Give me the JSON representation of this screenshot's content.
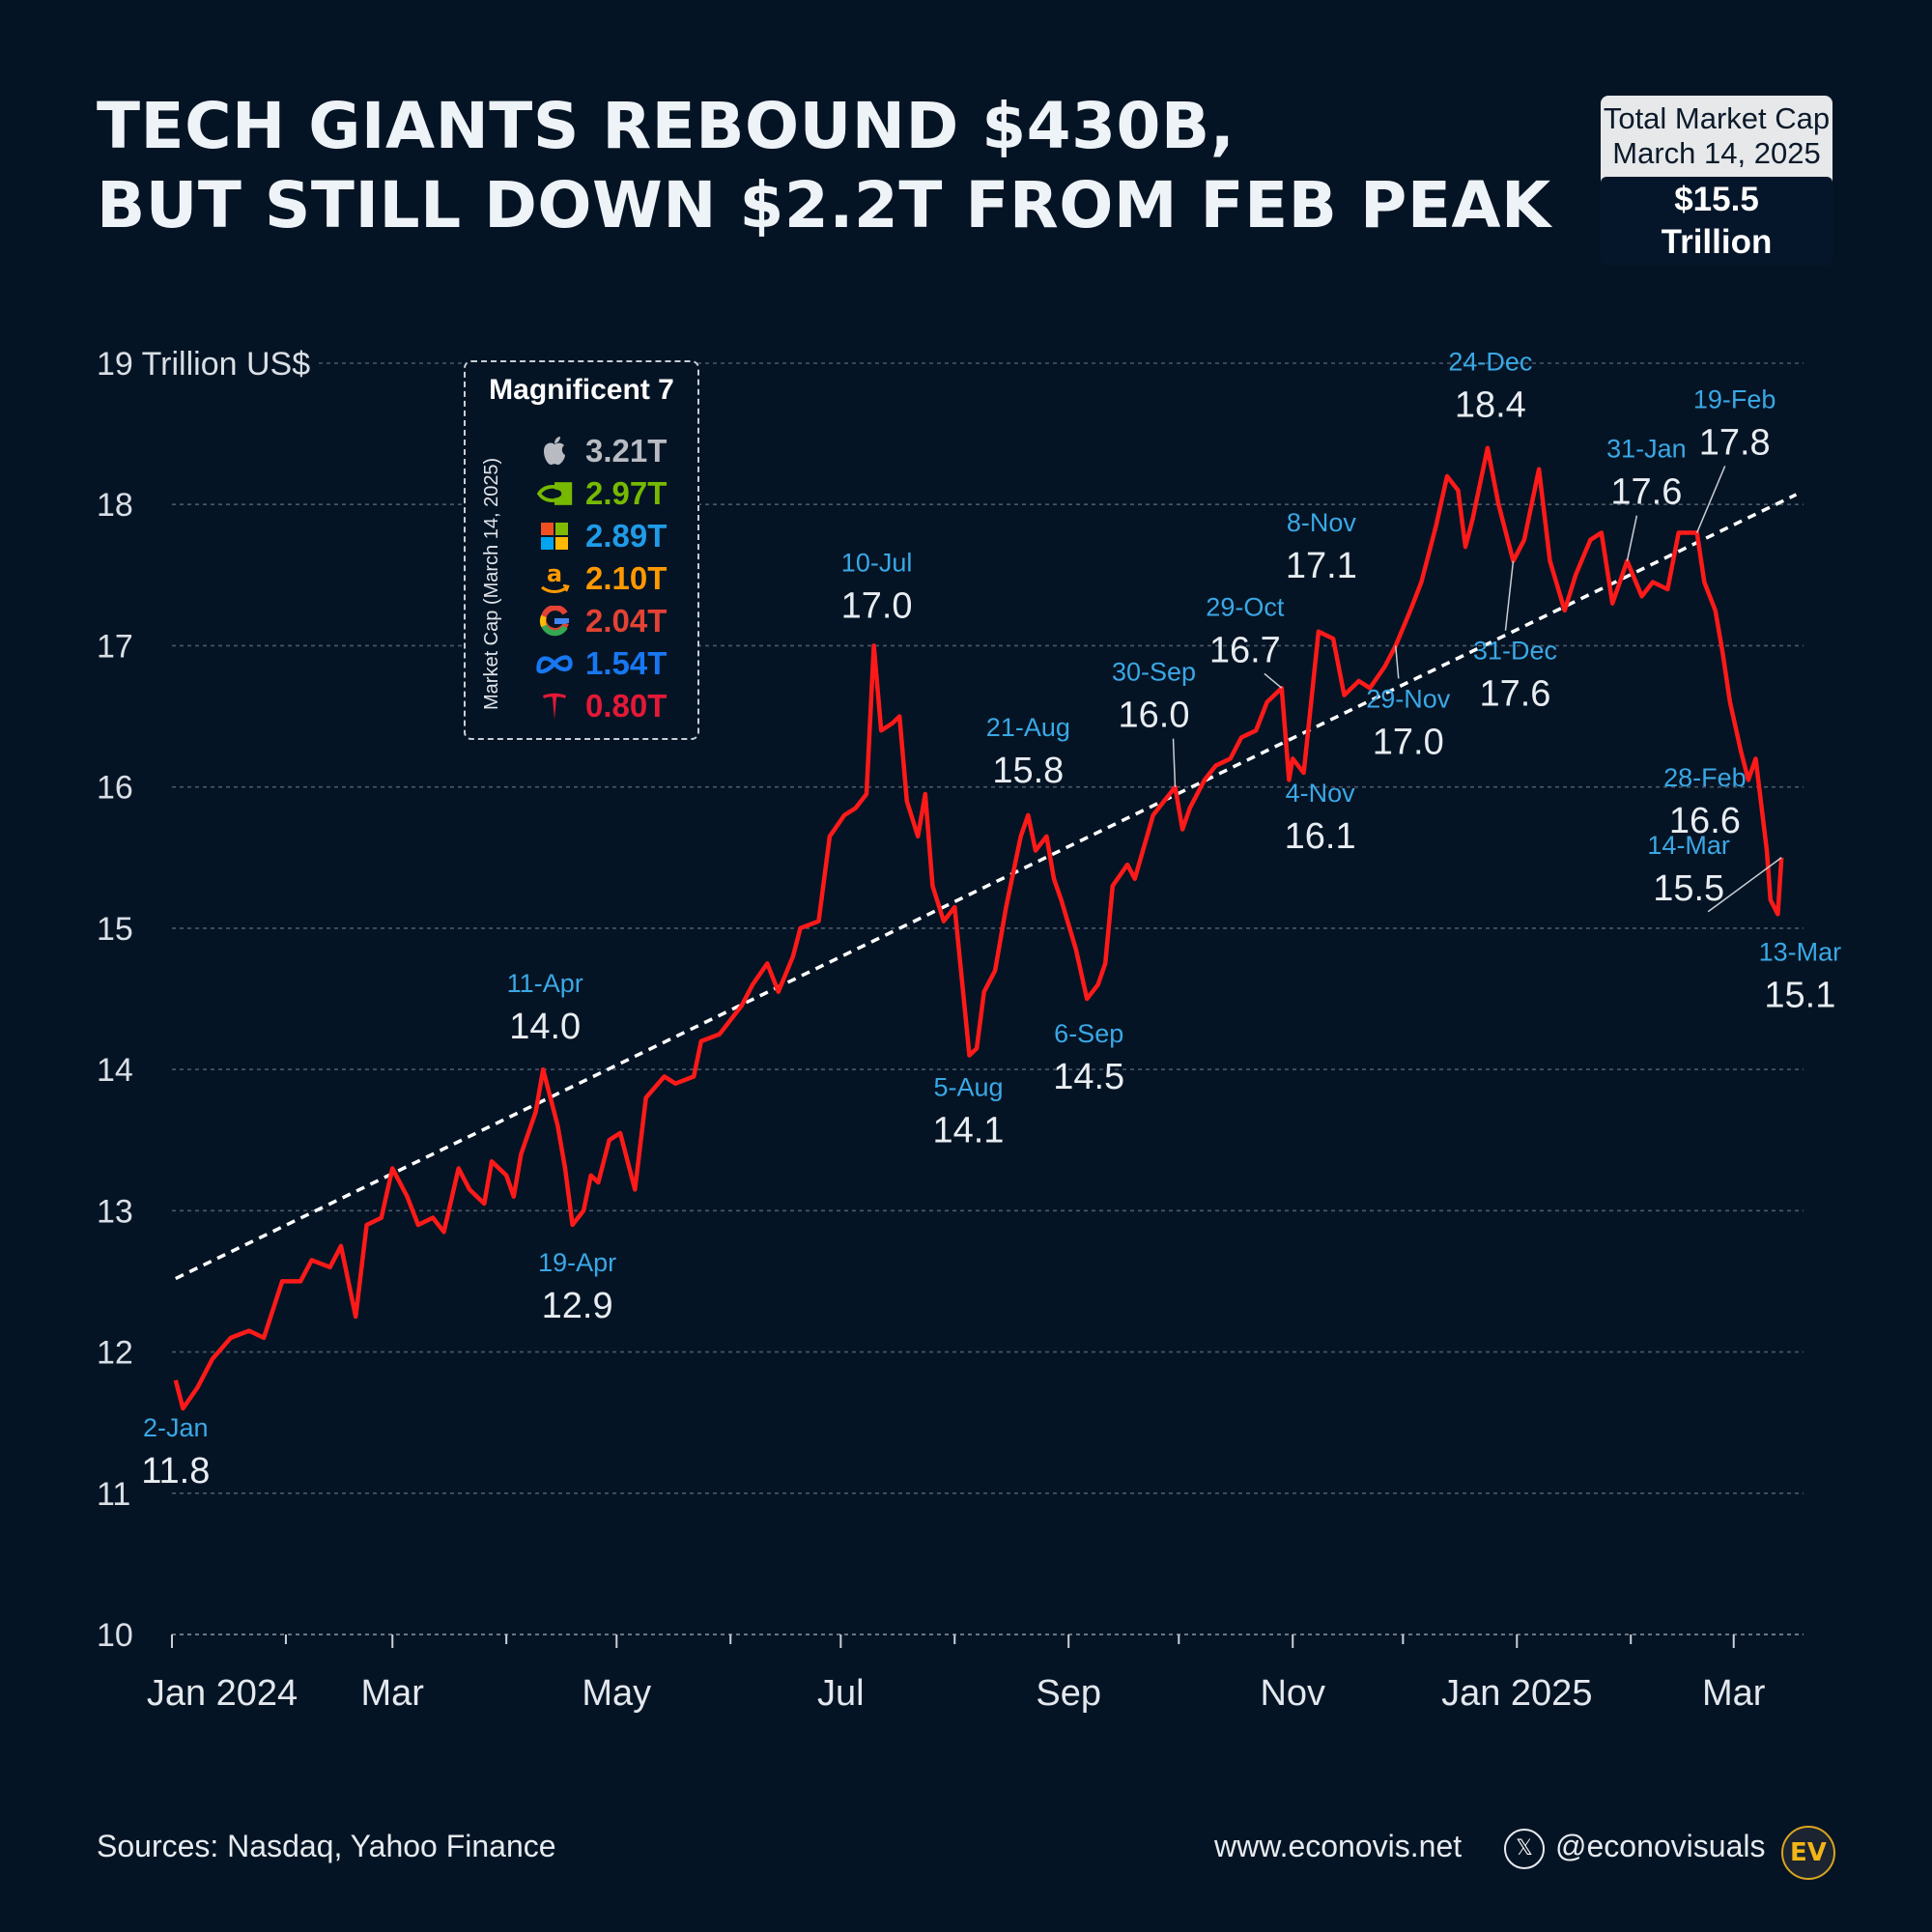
{
  "title_line1": "TECH GIANTS REBOUND $430B,",
  "title_line2": "BUT STILL DOWN $2.2T FROM FEB PEAK",
  "total_box": {
    "label1": "Total Market Cap",
    "label2": "March 14, 2025",
    "value": "$15.5 Trillion"
  },
  "legend": {
    "title": "Magnificent 7",
    "side_label": "Market Cap (March 14, 2025)",
    "items": [
      {
        "icon": "apple-icon",
        "value": "3.21T",
        "color": "#b8bcc2"
      },
      {
        "icon": "nvidia-icon",
        "value": "2.97T",
        "color": "#76b900"
      },
      {
        "icon": "microsoft-icon",
        "value": "2.89T",
        "color": "#1f9be8"
      },
      {
        "icon": "amazon-icon",
        "value": "2.10T",
        "color": "#ff9900"
      },
      {
        "icon": "google-icon",
        "value": "2.04T",
        "color": "#e34234"
      },
      {
        "icon": "meta-icon",
        "value": "1.54T",
        "color": "#1877f2"
      },
      {
        "icon": "tesla-icon",
        "value": "0.80T",
        "color": "#e31937"
      }
    ]
  },
  "colors": {
    "background": "#051424",
    "line": "#ff1a1a",
    "trend": "#ffffff",
    "date_label": "#3aa8e6",
    "value_label": "#e8edf2",
    "grid": "#4a5868"
  },
  "chart_data": {
    "type": "line",
    "title": "TECH GIANTS REBOUND $430B, BUT STILL DOWN $2.2T FROM FEB PEAK",
    "ylabel": "Trillion US$",
    "ylim": [
      10,
      19
    ],
    "yticks": [
      10,
      11,
      12,
      13,
      14,
      15,
      16,
      17,
      18,
      19
    ],
    "ytick_labels": [
      "10",
      "11",
      "12",
      "13",
      "14",
      "15",
      "16",
      "17",
      "18",
      "19 Trillion US$"
    ],
    "xlim": [
      "2024-01-01",
      "2025-03-20"
    ],
    "xtick_labels": [
      {
        "date": "2024-01-01",
        "label": "Jan  2024"
      },
      {
        "date": "2024-03-01",
        "label": "Mar"
      },
      {
        "date": "2024-05-01",
        "label": "May"
      },
      {
        "date": "2024-07-01",
        "label": "Jul"
      },
      {
        "date": "2024-09-01",
        "label": "Sep"
      },
      {
        "date": "2024-11-01",
        "label": "Nov"
      },
      {
        "date": "2025-01-01",
        "label": "Jan 2025"
      },
      {
        "date": "2025-03-01",
        "label": "Mar"
      }
    ],
    "minor_ticks": [
      "2024-02-01",
      "2024-04-01",
      "2024-06-01",
      "2024-08-01",
      "2024-10-01",
      "2024-12-01",
      "2025-02-01"
    ],
    "grid": true,
    "series": [
      {
        "type": "line",
        "color": "#ff1a1a",
        "points": [
          [
            "2024-01-02",
            11.8
          ],
          [
            "2024-01-04",
            11.6
          ],
          [
            "2024-01-08",
            11.75
          ],
          [
            "2024-01-12",
            11.95
          ],
          [
            "2024-01-17",
            12.1
          ],
          [
            "2024-01-22",
            12.15
          ],
          [
            "2024-01-26",
            12.1
          ],
          [
            "2024-01-31",
            12.5
          ],
          [
            "2024-02-05",
            12.5
          ],
          [
            "2024-02-08",
            12.65
          ],
          [
            "2024-02-13",
            12.6
          ],
          [
            "2024-02-16",
            12.75
          ],
          [
            "2024-02-20",
            12.25
          ],
          [
            "2024-02-23",
            12.9
          ],
          [
            "2024-02-27",
            12.95
          ],
          [
            "2024-03-01",
            13.3
          ],
          [
            "2024-03-05",
            13.1
          ],
          [
            "2024-03-08",
            12.9
          ],
          [
            "2024-03-12",
            12.95
          ],
          [
            "2024-03-15",
            12.85
          ],
          [
            "2024-03-19",
            13.3
          ],
          [
            "2024-03-22",
            13.15
          ],
          [
            "2024-03-26",
            13.05
          ],
          [
            "2024-03-28",
            13.35
          ],
          [
            "2024-04-01",
            13.25
          ],
          [
            "2024-04-03",
            13.1
          ],
          [
            "2024-04-05",
            13.4
          ],
          [
            "2024-04-09",
            13.7
          ],
          [
            "2024-04-11",
            14.0
          ],
          [
            "2024-04-15",
            13.6
          ],
          [
            "2024-04-17",
            13.3
          ],
          [
            "2024-04-19",
            12.9
          ],
          [
            "2024-04-22",
            13.0
          ],
          [
            "2024-04-24",
            13.25
          ],
          [
            "2024-04-26",
            13.2
          ],
          [
            "2024-04-29",
            13.5
          ],
          [
            "2024-05-02",
            13.55
          ],
          [
            "2024-05-06",
            13.15
          ],
          [
            "2024-05-09",
            13.8
          ],
          [
            "2024-05-14",
            13.95
          ],
          [
            "2024-05-17",
            13.9
          ],
          [
            "2024-05-22",
            13.95
          ],
          [
            "2024-05-24",
            14.2
          ],
          [
            "2024-05-29",
            14.25
          ],
          [
            "2024-06-04",
            14.45
          ],
          [
            "2024-06-07",
            14.6
          ],
          [
            "2024-06-11",
            14.75
          ],
          [
            "2024-06-14",
            14.55
          ],
          [
            "2024-06-18",
            14.8
          ],
          [
            "2024-06-20",
            15.0
          ],
          [
            "2024-06-25",
            15.05
          ],
          [
            "2024-06-28",
            15.65
          ],
          [
            "2024-07-02",
            15.8
          ],
          [
            "2024-07-05",
            15.85
          ],
          [
            "2024-07-08",
            15.95
          ],
          [
            "2024-07-10",
            17.0
          ],
          [
            "2024-07-12",
            16.4
          ],
          [
            "2024-07-15",
            16.45
          ],
          [
            "2024-07-17",
            16.5
          ],
          [
            "2024-07-19",
            15.9
          ],
          [
            "2024-07-22",
            15.65
          ],
          [
            "2024-07-24",
            15.95
          ],
          [
            "2024-07-26",
            15.3
          ],
          [
            "2024-07-29",
            15.05
          ],
          [
            "2024-08-01",
            15.15
          ],
          [
            "2024-08-05",
            14.1
          ],
          [
            "2024-08-07",
            14.15
          ],
          [
            "2024-08-09",
            14.55
          ],
          [
            "2024-08-12",
            14.7
          ],
          [
            "2024-08-15",
            15.15
          ],
          [
            "2024-08-19",
            15.65
          ],
          [
            "2024-08-21",
            15.8
          ],
          [
            "2024-08-23",
            15.55
          ],
          [
            "2024-08-26",
            15.65
          ],
          [
            "2024-08-28",
            15.35
          ],
          [
            "2024-08-30",
            15.2
          ],
          [
            "2024-09-03",
            14.85
          ],
          [
            "2024-09-06",
            14.5
          ],
          [
            "2024-09-09",
            14.6
          ],
          [
            "2024-09-11",
            14.75
          ],
          [
            "2024-09-13",
            15.3
          ],
          [
            "2024-09-17",
            15.45
          ],
          [
            "2024-09-19",
            15.35
          ],
          [
            "2024-09-24",
            15.8
          ],
          [
            "2024-09-27",
            15.9
          ],
          [
            "2024-09-30",
            16.0
          ],
          [
            "2024-10-02",
            15.7
          ],
          [
            "2024-10-04",
            15.85
          ],
          [
            "2024-10-08",
            16.05
          ],
          [
            "2024-10-11",
            16.15
          ],
          [
            "2024-10-15",
            16.2
          ],
          [
            "2024-10-18",
            16.35
          ],
          [
            "2024-10-22",
            16.4
          ],
          [
            "2024-10-25",
            16.6
          ],
          [
            "2024-10-29",
            16.7
          ],
          [
            "2024-10-31",
            16.05
          ],
          [
            "2024-11-01",
            16.2
          ],
          [
            "2024-11-04",
            16.1
          ],
          [
            "2024-11-06",
            16.6
          ],
          [
            "2024-11-08",
            17.1
          ],
          [
            "2024-11-12",
            17.05
          ],
          [
            "2024-11-15",
            16.65
          ],
          [
            "2024-11-19",
            16.75
          ],
          [
            "2024-11-22",
            16.7
          ],
          [
            "2024-11-26",
            16.85
          ],
          [
            "2024-11-29",
            17.0
          ],
          [
            "2024-12-03",
            17.25
          ],
          [
            "2024-12-06",
            17.45
          ],
          [
            "2024-12-10",
            17.85
          ],
          [
            "2024-12-13",
            18.2
          ],
          [
            "2024-12-16",
            18.1
          ],
          [
            "2024-12-18",
            17.7
          ],
          [
            "2024-12-20",
            17.9
          ],
          [
            "2024-12-24",
            18.4
          ],
          [
            "2024-12-27",
            18.0
          ],
          [
            "2024-12-31",
            17.6
          ],
          [
            "2025-01-03",
            17.75
          ],
          [
            "2025-01-07",
            18.25
          ],
          [
            "2025-01-10",
            17.6
          ],
          [
            "2025-01-14",
            17.25
          ],
          [
            "2025-01-17",
            17.5
          ],
          [
            "2025-01-21",
            17.75
          ],
          [
            "2025-01-24",
            17.8
          ],
          [
            "2025-01-27",
            17.3
          ],
          [
            "2025-01-31",
            17.6
          ],
          [
            "2025-02-04",
            17.35
          ],
          [
            "2025-02-07",
            17.45
          ],
          [
            "2025-02-11",
            17.4
          ],
          [
            "2025-02-14",
            17.8
          ],
          [
            "2025-02-19",
            17.8
          ],
          [
            "2025-02-21",
            17.45
          ],
          [
            "2025-02-24",
            17.25
          ],
          [
            "2025-02-26",
            16.95
          ],
          [
            "2025-02-28",
            16.6
          ],
          [
            "2025-03-03",
            16.25
          ],
          [
            "2025-03-05",
            16.05
          ],
          [
            "2025-03-07",
            16.2
          ],
          [
            "2025-03-10",
            15.55
          ],
          [
            "2025-03-11",
            15.2
          ],
          [
            "2025-03-13",
            15.1
          ],
          [
            "2025-03-14",
            15.5
          ]
        ]
      },
      {
        "type": "trend",
        "color": "#ffffff",
        "points": [
          [
            "2024-01-02",
            12.52
          ],
          [
            "2025-03-18",
            18.07
          ]
        ]
      }
    ],
    "annotations": [
      {
        "date": "2024-01-02",
        "value": 11.8,
        "date_label": "2-Jan",
        "value_label": "11.8"
      },
      {
        "date": "2024-04-11",
        "value": 14.0,
        "date_label": "11-Apr",
        "value_label": "14.0"
      },
      {
        "date": "2024-04-19",
        "value": 12.9,
        "date_label": "19-Apr",
        "value_label": "12.9"
      },
      {
        "date": "2024-07-10",
        "value": 17.0,
        "date_label": "10-Jul",
        "value_label": "17.0"
      },
      {
        "date": "2024-08-05",
        "value": 14.1,
        "date_label": "5-Aug",
        "value_label": "14.1"
      },
      {
        "date": "2024-08-21",
        "value": 15.8,
        "date_label": "21-Aug",
        "value_label": "15.8"
      },
      {
        "date": "2024-09-06",
        "value": 14.5,
        "date_label": "6-Sep",
        "value_label": "14.5"
      },
      {
        "date": "2024-09-30",
        "value": 16.0,
        "date_label": "30-Sep",
        "value_label": "16.0"
      },
      {
        "date": "2024-10-29",
        "value": 16.7,
        "date_label": "29-Oct",
        "value_label": "16.7"
      },
      {
        "date": "2024-11-04",
        "value": 16.1,
        "date_label": "4-Nov",
        "value_label": "16.1"
      },
      {
        "date": "2024-11-08",
        "value": 17.1,
        "date_label": "8-Nov",
        "value_label": "17.1"
      },
      {
        "date": "2024-11-29",
        "value": 17.0,
        "date_label": "29-Nov",
        "value_label": "17.0"
      },
      {
        "date": "2024-12-24",
        "value": 18.4,
        "date_label": "24-Dec",
        "value_label": "18.4"
      },
      {
        "date": "2024-12-31",
        "value": 17.6,
        "date_label": "31-Dec",
        "value_label": "17.6"
      },
      {
        "date": "2025-01-31",
        "value": 17.6,
        "date_label": "31-Jan",
        "value_label": "17.6"
      },
      {
        "date": "2025-02-19",
        "value": 17.8,
        "date_label": "19-Feb",
        "value_label": "17.8"
      },
      {
        "date": "2025-02-28",
        "value": 16.6,
        "date_label": "28-Feb",
        "value_label": "16.6"
      },
      {
        "date": "2025-03-14",
        "value": 15.5,
        "date_label": "14-Mar",
        "value_label": "15.5"
      },
      {
        "date": "2025-03-13",
        "value": 15.1,
        "date_label": "13-Mar",
        "value_label": "15.1"
      }
    ]
  },
  "footer": {
    "source": "Sources: Nasdaq, Yahoo Finance",
    "site": "www.econovis.net",
    "x_glyph": "𝕏",
    "handle": "@econovisuals",
    "logo": "EV"
  }
}
